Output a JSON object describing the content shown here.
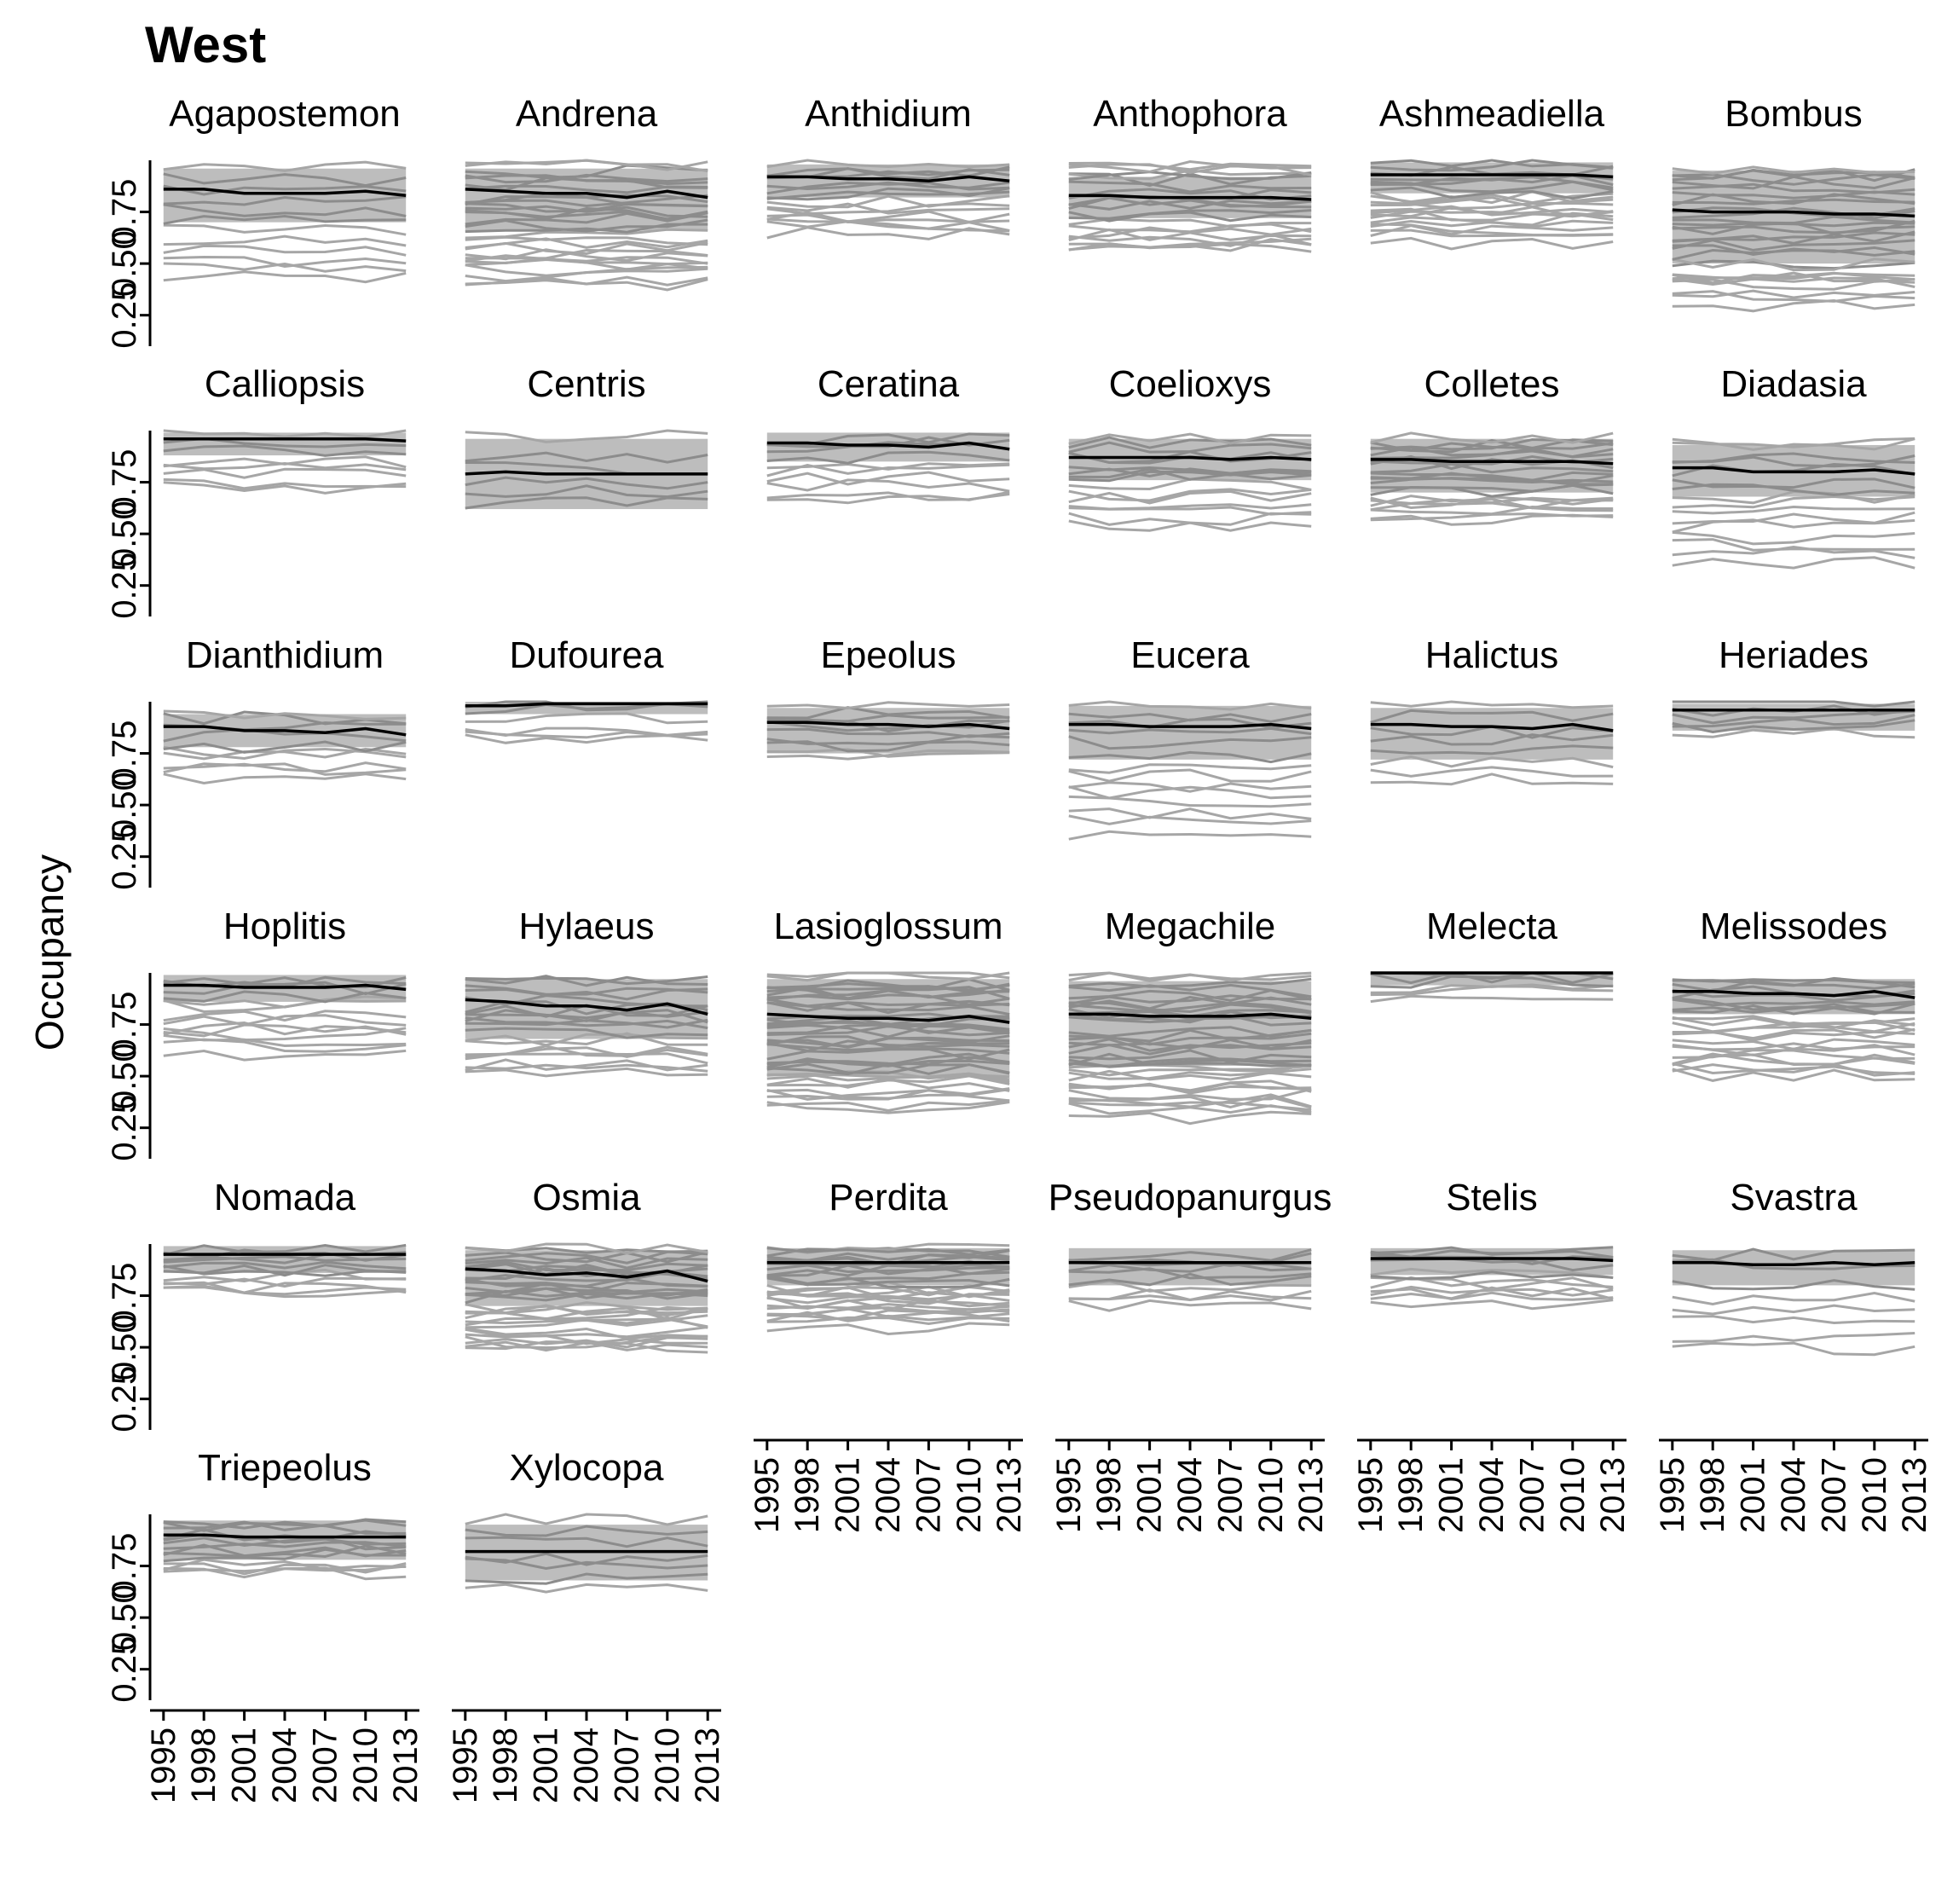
{
  "chart_data": {
    "type": "line",
    "title": "West",
    "ylabel": "Occupancy",
    "xlabel": "",
    "x_ticks": [
      1995,
      1998,
      2001,
      2004,
      2007,
      2010,
      2013
    ],
    "y_ticks": [
      0.25,
      0.5,
      0.75
    ],
    "y_tick_labels": [
      "0.25",
      "0.50",
      "0.75"
    ],
    "ylim": [
      0.1,
      1.0
    ],
    "xlim": [
      1994,
      2014
    ],
    "years": [
      1995,
      1998,
      2001,
      2004,
      2007,
      2010,
      2013
    ],
    "grid": false,
    "legend": "none",
    "colors": {
      "mean": "#000000",
      "band": "#bdbdbd",
      "species": "#a6a6a6"
    },
    "panels": [
      {
        "name": "Agapostemon",
        "mean": [
          0.86,
          0.86,
          0.84,
          0.84,
          0.84,
          0.85,
          0.83
        ],
        "band": [
          0.7,
          0.96
        ],
        "n": 12,
        "lo": 0.4,
        "hi": 0.98
      },
      {
        "name": "Andrena",
        "mean": [
          0.86,
          0.85,
          0.84,
          0.84,
          0.82,
          0.85,
          0.82
        ],
        "band": [
          0.66,
          0.96
        ],
        "n": 30,
        "lo": 0.4,
        "hi": 0.98
      },
      {
        "name": "Anthidium",
        "mean": [
          0.92,
          0.92,
          0.91,
          0.91,
          0.9,
          0.92,
          0.9
        ],
        "band": [
          0.82,
          0.98
        ],
        "n": 16,
        "lo": 0.65,
        "hi": 0.98
      },
      {
        "name": "Anthophora",
        "mean": [
          0.83,
          0.83,
          0.82,
          0.82,
          0.82,
          0.82,
          0.81
        ],
        "band": [
          0.72,
          0.92
        ],
        "n": 22,
        "lo": 0.55,
        "hi": 1.0
      },
      {
        "name": "Ashmeadiella",
        "mean": [
          0.93,
          0.93,
          0.93,
          0.93,
          0.93,
          0.93,
          0.92
        ],
        "band": [
          0.84,
          0.99
        ],
        "n": 22,
        "lo": 0.6,
        "hi": 0.99
      },
      {
        "name": "Bombus",
        "mean": [
          0.76,
          0.75,
          0.75,
          0.75,
          0.74,
          0.74,
          0.73
        ],
        "band": [
          0.5,
          0.95
        ],
        "n": 30,
        "lo": 0.3,
        "hi": 0.98
      },
      {
        "name": "Calliopsis",
        "mean": [
          0.96,
          0.96,
          0.96,
          0.96,
          0.96,
          0.96,
          0.95
        ],
        "band": [
          0.88,
          0.99
        ],
        "n": 8,
        "lo": 0.7,
        "hi": 0.99
      },
      {
        "name": "Centris",
        "mean": [
          0.79,
          0.8,
          0.79,
          0.79,
          0.79,
          0.79,
          0.79
        ],
        "band": [
          0.62,
          0.96
        ],
        "n": 6,
        "lo": 0.6,
        "hi": 0.99
      },
      {
        "name": "Ceratina",
        "mean": [
          0.94,
          0.94,
          0.93,
          0.93,
          0.92,
          0.94,
          0.91
        ],
        "band": [
          0.85,
          0.99
        ],
        "n": 10,
        "lo": 0.65,
        "hi": 0.99
      },
      {
        "name": "Coelioxys",
        "mean": [
          0.87,
          0.87,
          0.87,
          0.87,
          0.86,
          0.87,
          0.86
        ],
        "band": [
          0.76,
          0.96
        ],
        "n": 16,
        "lo": 0.55,
        "hi": 0.98
      },
      {
        "name": "Colletes",
        "mean": [
          0.86,
          0.86,
          0.85,
          0.85,
          0.85,
          0.85,
          0.84
        ],
        "band": [
          0.7,
          0.96
        ],
        "n": 22,
        "lo": 0.55,
        "hi": 0.98
      },
      {
        "name": "Diadasia",
        "mean": [
          0.82,
          0.82,
          0.8,
          0.8,
          0.8,
          0.81,
          0.79
        ],
        "band": [
          0.68,
          0.93
        ],
        "n": 16,
        "lo": 0.35,
        "hi": 0.98
      },
      {
        "name": "Dianthidium",
        "mean": [
          0.88,
          0.88,
          0.86,
          0.86,
          0.85,
          0.87,
          0.84
        ],
        "band": [
          0.78,
          0.94
        ],
        "n": 10,
        "lo": 0.6,
        "hi": 0.96
      },
      {
        "name": "Dufourea",
        "mean": [
          0.98,
          0.98,
          0.99,
          0.99,
          0.99,
          0.99,
          0.99
        ],
        "band": [
          0.94,
          1.0
        ],
        "n": 6,
        "lo": 0.8,
        "hi": 1.0
      },
      {
        "name": "Epeolus",
        "mean": [
          0.9,
          0.9,
          0.89,
          0.89,
          0.88,
          0.89,
          0.87
        ],
        "band": [
          0.75,
          0.97
        ],
        "n": 10,
        "lo": 0.72,
        "hi": 0.99
      },
      {
        "name": "Eucera",
        "mean": [
          0.89,
          0.89,
          0.88,
          0.88,
          0.88,
          0.89,
          0.87
        ],
        "band": [
          0.72,
          0.98
        ],
        "n": 14,
        "lo": 0.35,
        "hi": 1.0
      },
      {
        "name": "Halictus",
        "mean": [
          0.89,
          0.89,
          0.88,
          0.88,
          0.87,
          0.89,
          0.86
        ],
        "band": [
          0.72,
          0.97
        ],
        "n": 8,
        "lo": 0.6,
        "hi": 0.99
      },
      {
        "name": "Heriades",
        "mean": [
          0.96,
          0.96,
          0.96,
          0.96,
          0.96,
          0.96,
          0.96
        ],
        "band": [
          0.86,
          0.99
        ],
        "n": 6,
        "lo": 0.85,
        "hi": 0.99
      },
      {
        "name": "Hoplitis",
        "mean": [
          0.94,
          0.94,
          0.93,
          0.93,
          0.93,
          0.94,
          0.92
        ],
        "band": [
          0.86,
          0.99
        ],
        "n": 14,
        "lo": 0.6,
        "hi": 0.98
      },
      {
        "name": "Hylaeus",
        "mean": [
          0.87,
          0.86,
          0.84,
          0.84,
          0.82,
          0.85,
          0.8
        ],
        "band": [
          0.68,
          0.97
        ],
        "n": 20,
        "lo": 0.5,
        "hi": 0.98
      },
      {
        "name": "Lasioglossum",
        "mean": [
          0.8,
          0.79,
          0.78,
          0.78,
          0.77,
          0.79,
          0.76
        ],
        "band": [
          0.5,
          0.97
        ],
        "n": 40,
        "lo": 0.35,
        "hi": 1.0
      },
      {
        "name": "Megachile",
        "mean": [
          0.8,
          0.8,
          0.79,
          0.79,
          0.79,
          0.8,
          0.78
        ],
        "band": [
          0.55,
          0.96
        ],
        "n": 36,
        "lo": 0.3,
        "hi": 0.99
      },
      {
        "name": "Melecta",
        "mean": [
          1.0,
          1.0,
          1.0,
          1.0,
          1.0,
          1.0,
          1.0
        ],
        "band": [
          0.94,
          1.0
        ],
        "n": 6,
        "lo": 0.88,
        "hi": 1.0
      },
      {
        "name": "Melissodes",
        "mean": [
          0.91,
          0.91,
          0.9,
          0.9,
          0.89,
          0.91,
          0.88
        ],
        "band": [
          0.8,
          0.97
        ],
        "n": 24,
        "lo": 0.5,
        "hi": 0.98
      },
      {
        "name": "Nomada",
        "mean": [
          0.95,
          0.95,
          0.95,
          0.95,
          0.95,
          0.95,
          0.95
        ],
        "band": [
          0.86,
          0.99
        ],
        "n": 12,
        "lo": 0.75,
        "hi": 0.99
      },
      {
        "name": "Osmia",
        "mean": [
          0.88,
          0.87,
          0.85,
          0.86,
          0.84,
          0.87,
          0.82
        ],
        "band": [
          0.7,
          0.97
        ],
        "n": 32,
        "lo": 0.48,
        "hi": 0.98
      },
      {
        "name": "Perdita",
        "mean": [
          0.91,
          0.91,
          0.91,
          0.91,
          0.91,
          0.91,
          0.91
        ],
        "band": [
          0.8,
          0.98
        ],
        "n": 28,
        "lo": 0.6,
        "hi": 0.99
      },
      {
        "name": "Pseudopanurgus",
        "mean": [
          0.91,
          0.91,
          0.91,
          0.91,
          0.91,
          0.91,
          0.91
        ],
        "band": [
          0.8,
          0.98
        ],
        "n": 10,
        "lo": 0.7,
        "hi": 0.98
      },
      {
        "name": "Stelis",
        "mean": [
          0.93,
          0.93,
          0.93,
          0.93,
          0.93,
          0.93,
          0.92
        ],
        "band": [
          0.85,
          0.98
        ],
        "n": 12,
        "lo": 0.7,
        "hi": 0.98
      },
      {
        "name": "Svastra",
        "mean": [
          0.91,
          0.91,
          0.9,
          0.9,
          0.91,
          0.9,
          0.91
        ],
        "band": [
          0.8,
          0.97
        ],
        "n": 8,
        "lo": 0.45,
        "hi": 0.99
      },
      {
        "name": "Triepeolus",
        "mean": [
          0.9,
          0.9,
          0.89,
          0.89,
          0.89,
          0.89,
          0.89
        ],
        "band": [
          0.78,
          0.97
        ],
        "n": 14,
        "lo": 0.7,
        "hi": 0.98
      },
      {
        "name": "Xylocopa",
        "mean": [
          0.82,
          0.82,
          0.82,
          0.82,
          0.82,
          0.82,
          0.82
        ],
        "band": [
          0.68,
          0.95
        ],
        "n": 7,
        "lo": 0.6,
        "hi": 0.99
      }
    ]
  }
}
